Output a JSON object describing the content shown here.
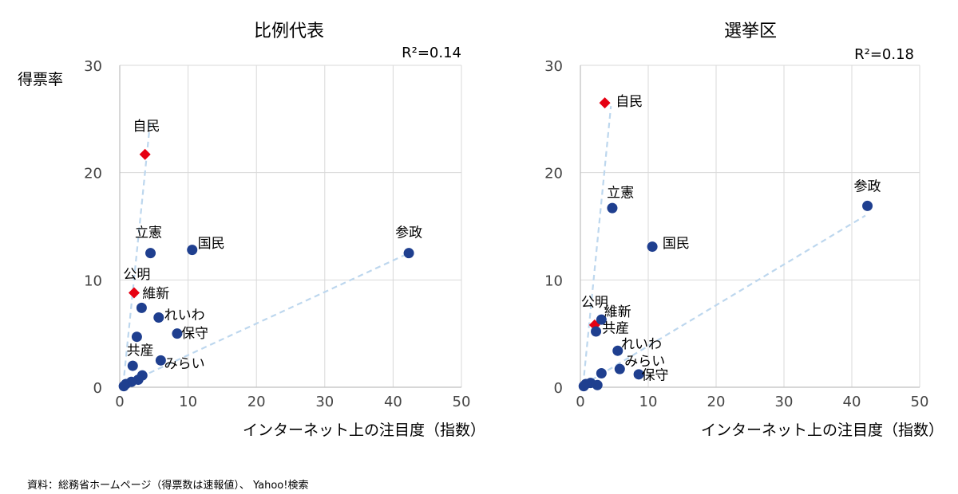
{
  "ylabel": "得票率",
  "source": "資料：総務省ホームページ（得票数は速報値）、 Yahoo!検索",
  "colors": {
    "circle": "#1f3f8f",
    "diamond": "#e60012",
    "trend": "#bdd7ee"
  },
  "chart_data": [
    {
      "type": "scatter",
      "title": "比例代表",
      "r2": "R²=0.14",
      "xlabel": "インターネット上の注目度（指数）",
      "ylabel": "得票率",
      "xlim": [
        0,
        50
      ],
      "ylim": [
        0,
        30
      ],
      "xticks": [
        "0",
        "10",
        "20",
        "30",
        "40",
        "50"
      ],
      "yticks": [
        "0",
        "10",
        "20",
        "30"
      ],
      "grid": true,
      "trendlines": [
        {
          "x": [
            0.5,
            4.5
          ],
          "y": [
            0.2,
            25
          ]
        },
        {
          "x": [
            0.5,
            43
          ],
          "y": [
            0.2,
            12.7
          ]
        }
      ],
      "points": [
        {
          "label": "自民",
          "x": 3.7,
          "y": 21.7,
          "marker": "diamond",
          "lx": 3.9,
          "ly": 23.9,
          "anchor": "middle"
        },
        {
          "label": "公明",
          "x": 2.1,
          "y": 8.8,
          "marker": "diamond",
          "lx": 2.5,
          "ly": 10.1,
          "anchor": "middle"
        },
        {
          "label": "立憲",
          "x": 4.5,
          "y": 12.5,
          "marker": "circle",
          "lx": 4.2,
          "ly": 14.0,
          "anchor": "middle"
        },
        {
          "label": "国民",
          "x": 10.6,
          "y": 12.8,
          "marker": "circle",
          "lx": 11.4,
          "ly": 13.0,
          "anchor": "start"
        },
        {
          "label": "参政",
          "x": 42.3,
          "y": 12.5,
          "marker": "circle",
          "lx": 42.3,
          "ly": 14.0,
          "anchor": "middle"
        },
        {
          "label": "維新",
          "x": 3.2,
          "y": 7.4,
          "marker": "circle",
          "lx": 3.3,
          "ly": 8.3,
          "anchor": "start"
        },
        {
          "label": "れいわ",
          "x": 5.7,
          "y": 6.5,
          "marker": "circle",
          "lx": 6.5,
          "ly": 6.3,
          "anchor": "start"
        },
        {
          "label": "保守",
          "x": 8.4,
          "y": 5.0,
          "marker": "circle",
          "lx": 9.0,
          "ly": 4.6,
          "anchor": "start"
        },
        {
          "label": "",
          "x": 2.5,
          "y": 4.7,
          "marker": "circle"
        },
        {
          "label": "共産",
          "x": 1.9,
          "y": 2.0,
          "marker": "circle",
          "lx": 3.0,
          "ly": 3.0,
          "anchor": "middle"
        },
        {
          "label": "みらい",
          "x": 6.0,
          "y": 2.5,
          "marker": "circle",
          "lx": 6.5,
          "ly": 1.8,
          "anchor": "start"
        },
        {
          "label": "",
          "x": 3.3,
          "y": 1.1,
          "marker": "circle"
        },
        {
          "label": "",
          "x": 2.7,
          "y": 0.7,
          "marker": "circle"
        },
        {
          "label": "",
          "x": 1.7,
          "y": 0.5,
          "marker": "circle"
        },
        {
          "label": "",
          "x": 0.9,
          "y": 0.3,
          "marker": "circle"
        },
        {
          "label": "",
          "x": 0.6,
          "y": 0.1,
          "marker": "circle"
        }
      ]
    },
    {
      "type": "scatter",
      "title": "選挙区",
      "r2": "R²=0.18",
      "xlabel": "インターネット上の注目度（指数）",
      "ylabel": "",
      "xlim": [
        0,
        50
      ],
      "ylim": [
        0,
        30
      ],
      "xticks": [
        "0",
        "10",
        "20",
        "30",
        "40",
        "50"
      ],
      "yticks": [
        "0",
        "10",
        "20",
        "30"
      ],
      "grid": true,
      "trendlines": [
        {
          "x": [
            0.4,
            4.5
          ],
          "y": [
            0.2,
            26.2
          ]
        },
        {
          "x": [
            0.4,
            42
          ],
          "y": [
            0.2,
            16.0
          ]
        }
      ],
      "points": [
        {
          "label": "自民",
          "x": 3.6,
          "y": 26.5,
          "marker": "diamond",
          "lx": 5.2,
          "ly": 26.2,
          "anchor": "start"
        },
        {
          "label": "立憲",
          "x": 4.7,
          "y": 16.7,
          "marker": "circle",
          "lx": 5.9,
          "ly": 17.7,
          "anchor": "middle"
        },
        {
          "label": "国民",
          "x": 10.6,
          "y": 13.1,
          "marker": "circle",
          "lx": 12.1,
          "ly": 13.0,
          "anchor": "start"
        },
        {
          "label": "参政",
          "x": 42.3,
          "y": 16.9,
          "marker": "circle",
          "lx": 42.3,
          "ly": 18.3,
          "anchor": "middle"
        },
        {
          "label": "公明",
          "x": 2.1,
          "y": 5.8,
          "marker": "diamond",
          "lx": 2.1,
          "ly": 7.5,
          "anchor": "middle"
        },
        {
          "label": "維新",
          "x": 3.1,
          "y": 6.3,
          "marker": "circle",
          "lx": 5.5,
          "ly": 6.6,
          "anchor": "middle"
        },
        {
          "label": "共産",
          "x": 2.3,
          "y": 5.2,
          "marker": "circle",
          "lx": 3.2,
          "ly": 5.1,
          "anchor": "start"
        },
        {
          "label": "れいわ",
          "x": 5.5,
          "y": 3.4,
          "marker": "circle",
          "lx": 6.0,
          "ly": 3.6,
          "anchor": "start"
        },
        {
          "label": "みらい",
          "x": 5.8,
          "y": 1.7,
          "marker": "circle",
          "lx": 6.5,
          "ly": 2.0,
          "anchor": "start"
        },
        {
          "label": "保守",
          "x": 8.6,
          "y": 1.2,
          "marker": "circle",
          "lx": 9.0,
          "ly": 0.7,
          "anchor": "start"
        },
        {
          "label": "",
          "x": 3.1,
          "y": 1.3,
          "marker": "circle"
        },
        {
          "label": "",
          "x": 2.5,
          "y": 0.2,
          "marker": "circle"
        },
        {
          "label": "",
          "x": 1.5,
          "y": 0.4,
          "marker": "circle"
        },
        {
          "label": "",
          "x": 0.8,
          "y": 0.3,
          "marker": "circle"
        },
        {
          "label": "",
          "x": 0.5,
          "y": 0.1,
          "marker": "circle"
        }
      ]
    }
  ]
}
